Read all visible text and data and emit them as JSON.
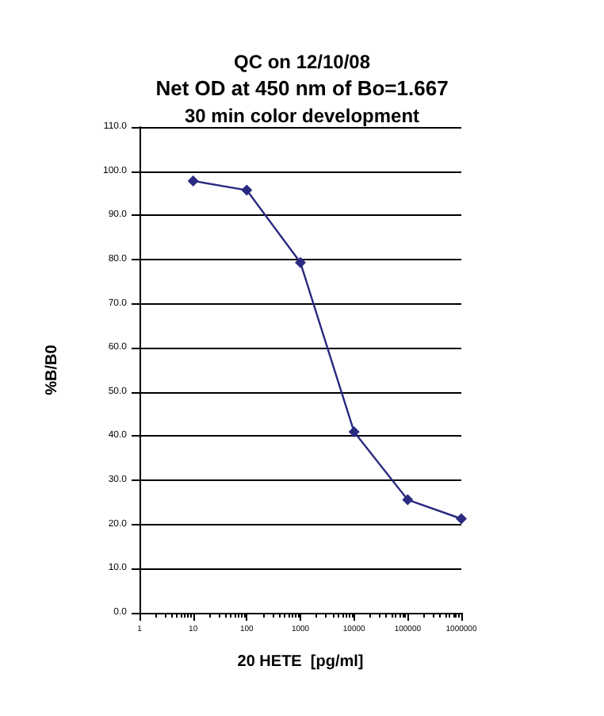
{
  "chart_data": {
    "type": "line",
    "title": "QC on 12/10/08",
    "subtitle": "Net OD at 450 nm of Bo=1.667",
    "annotations": [
      "30 min color development"
    ],
    "xlabel": "20 HETE  [pg/ml]",
    "ylabel": "%B/B0",
    "x": [
      10,
      100,
      1000,
      10000,
      100000,
      1000000
    ],
    "series": [
      {
        "color": "#2a2a80",
        "values": [
          97.8,
          95.7,
          79.3,
          41.0,
          25.6,
          21.3
        ]
      }
    ],
    "log": "x",
    "xlim": [
      1,
      1000000
    ],
    "xticks": [
      1,
      10,
      100,
      1000,
      10000,
      100000,
      1000000
    ],
    "ylim": [
      0,
      110
    ],
    "yticks": [
      {
        "value": 0,
        "label": "0.0"
      },
      {
        "value": 10,
        "label": "10.0"
      },
      {
        "value": 20,
        "label": "20.0"
      },
      {
        "value": 30,
        "label": "30.0"
      },
      {
        "value": 40,
        "label": "40.0"
      },
      {
        "value": 50,
        "label": "50.0"
      },
      {
        "value": 60,
        "label": "60.0"
      },
      {
        "value": 70,
        "label": "70.0"
      },
      {
        "value": 80,
        "label": "80.0"
      },
      {
        "value": 90,
        "label": "90.0"
      },
      {
        "value": 100,
        "label": "100.0"
      },
      {
        "value": 110,
        "label": "110.0"
      }
    ],
    "grid": "y",
    "marker": "diamond",
    "line_style": "solid"
  }
}
